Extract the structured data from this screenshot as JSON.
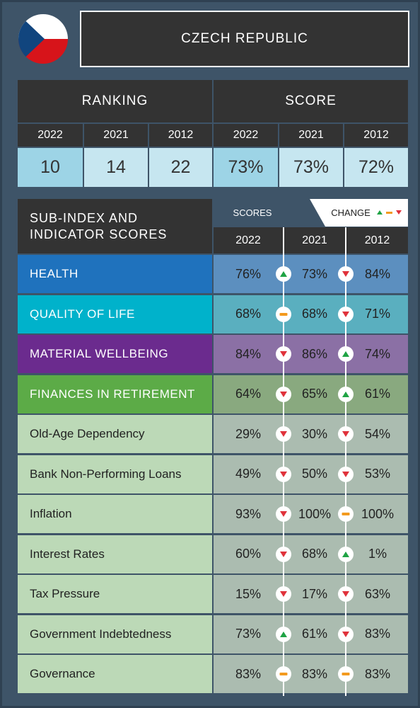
{
  "header": {
    "title": "CZECH REPUBLIC"
  },
  "summary": {
    "ranking": {
      "label": "RANKING",
      "years": [
        "2022",
        "2021",
        "2012"
      ],
      "values": [
        "10",
        "14",
        "22"
      ]
    },
    "score": {
      "label": "SCORE",
      "years": [
        "2022",
        "2021",
        "2012"
      ],
      "values": [
        "73%",
        "73%",
        "72%"
      ]
    }
  },
  "table": {
    "title": "SUB-INDEX AND INDICATOR SCORES",
    "scores_label": "SCORES",
    "change_label": "CHANGE",
    "years": [
      "2022",
      "2021",
      "2012"
    ],
    "rows": [
      {
        "name": "HEALTH",
        "values": [
          "76%",
          "73%",
          "84%"
        ],
        "changes": [
          "up",
          "down"
        ],
        "color": "#1f72bd",
        "value_color": "#5c8fbf",
        "text_color": "#ffffff"
      },
      {
        "name": "QUALITY OF LIFE",
        "values": [
          "68%",
          "68%",
          "71%"
        ],
        "changes": [
          "flat",
          "down"
        ],
        "color": "#00b2cb",
        "value_color": "#5aafbf",
        "text_color": "#ffffff"
      },
      {
        "name": "MATERIAL WELLBEING",
        "values": [
          "84%",
          "86%",
          "74%"
        ],
        "changes": [
          "down",
          "up"
        ],
        "color": "#6b2b8e",
        "value_color": "#8b70a5",
        "text_color": "#ffffff"
      },
      {
        "name": "FINANCES IN RETIREMENT",
        "values": [
          "64%",
          "65%",
          "61%"
        ],
        "changes": [
          "down",
          "up"
        ],
        "color": "#5cab47",
        "value_color": "#89a97f",
        "text_color": "#ffffff"
      },
      {
        "name": "Old-Age Dependency",
        "values": [
          "29%",
          "30%",
          "54%"
        ],
        "changes": [
          "down",
          "down"
        ],
        "color": "#bcd9b7",
        "value_color": "#abbcb0",
        "text_color": "#222222"
      },
      {
        "name": "Bank Non-Performing Loans",
        "values": [
          "49%",
          "50%",
          "53%"
        ],
        "changes": [
          "down",
          "down"
        ],
        "color": "#bcd9b7",
        "value_color": "#abbcb0",
        "text_color": "#222222"
      },
      {
        "name": "Inflation",
        "values": [
          "93%",
          "100%",
          "100%"
        ],
        "changes": [
          "down",
          "flat"
        ],
        "color": "#bcd9b7",
        "value_color": "#abbcb0",
        "text_color": "#222222"
      },
      {
        "name": "Interest Rates",
        "values": [
          "60%",
          "68%",
          "1%"
        ],
        "changes": [
          "down",
          "up"
        ],
        "color": "#bcd9b7",
        "value_color": "#abbcb0",
        "text_color": "#222222"
      },
      {
        "name": "Tax Pressure",
        "values": [
          "15%",
          "17%",
          "63%"
        ],
        "changes": [
          "down",
          "down"
        ],
        "color": "#bcd9b7",
        "value_color": "#abbcb0",
        "text_color": "#222222"
      },
      {
        "name": "Government Indebtedness",
        "values": [
          "73%",
          "61%",
          "83%"
        ],
        "changes": [
          "up",
          "down"
        ],
        "color": "#bcd9b7",
        "value_color": "#abbcb0",
        "text_color": "#222222"
      },
      {
        "name": "Governance",
        "values": [
          "83%",
          "83%",
          "83%"
        ],
        "changes": [
          "flat",
          "flat"
        ],
        "color": "#bcd9b7",
        "value_color": "#abbcb0",
        "text_color": "#222222"
      }
    ]
  }
}
